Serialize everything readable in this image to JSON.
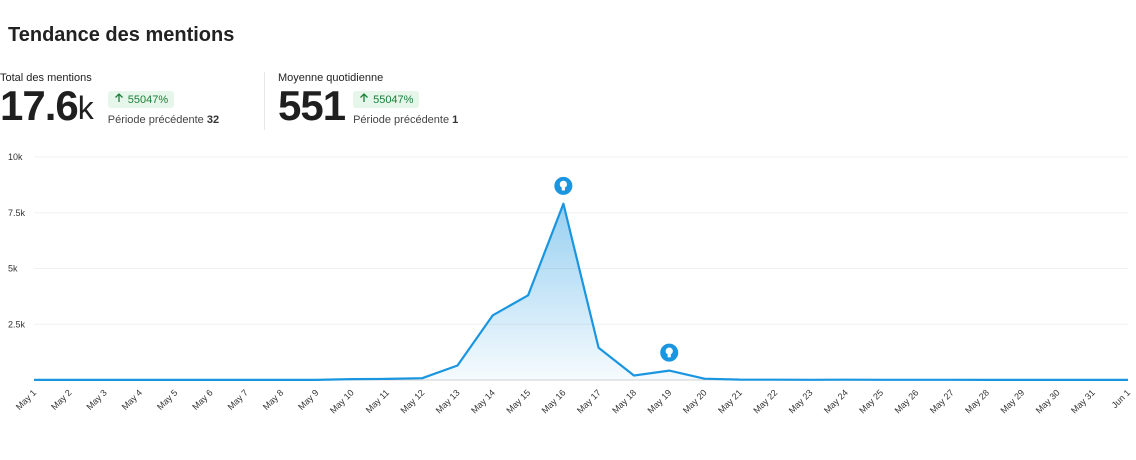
{
  "header": {
    "title": "Tendance des mentions"
  },
  "stats": {
    "total": {
      "label": "Total des mentions",
      "value": "17.6",
      "suffix": "k",
      "change": "55047%",
      "previous_label": "Période précédente",
      "previous_value": "32"
    },
    "average": {
      "label": "Moyenne quotidienne",
      "value": "551",
      "change": "55047%",
      "previous_label": "Période précédente",
      "previous_value": "1"
    }
  },
  "colors": {
    "line": "#1a96e0",
    "badge_text": "#1a7f37",
    "badge_bg": "#e6f6ea"
  },
  "chart_data": {
    "type": "area",
    "title": "",
    "xlabel": "",
    "ylabel": "",
    "ylim": [
      0,
      10000
    ],
    "yticks": [
      2500,
      5000,
      7500,
      10000
    ],
    "ytick_labels": [
      "2.5k",
      "5k",
      "7.5k",
      "10k"
    ],
    "categories": [
      "May 1",
      "May 2",
      "May 3",
      "May 4",
      "May 5",
      "May 6",
      "May 7",
      "May 8",
      "May 9",
      "May 10",
      "May 11",
      "May 12",
      "May 13",
      "May 14",
      "May 15",
      "May 16",
      "May 17",
      "May 18",
      "May 19",
      "May 20",
      "May 21",
      "May 22",
      "May 23",
      "May 24",
      "May 25",
      "May 26",
      "May 27",
      "May 28",
      "May 29",
      "May 30",
      "May 31",
      "Jun 1"
    ],
    "series": [
      {
        "name": "Mentions",
        "values": [
          5,
          5,
          5,
          5,
          5,
          5,
          5,
          5,
          5,
          40,
          50,
          80,
          650,
          2900,
          3800,
          7900,
          1450,
          200,
          420,
          60,
          20,
          15,
          10,
          15,
          10,
          8,
          8,
          5,
          5,
          5,
          5,
          5
        ]
      }
    ],
    "annotations": [
      {
        "x": "May 16",
        "icon": "lightbulb-icon"
      },
      {
        "x": "May 19",
        "icon": "lightbulb-icon"
      }
    ]
  }
}
